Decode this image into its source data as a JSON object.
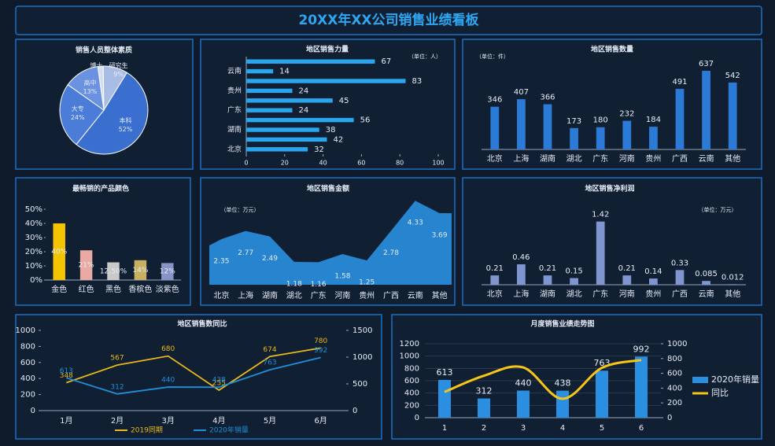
{
  "header": {
    "title": "20XX年XX公司销售业绩看板"
  },
  "chart_data": [
    {
      "type": "pie",
      "title": "销售人员整体素质",
      "categories": [
        "博士",
        "研究生",
        "本科",
        "大专",
        "高中"
      ],
      "values": [
        2,
        9,
        52,
        24,
        13
      ],
      "value_labels": [
        "2%",
        "9%",
        "52%",
        "24%",
        "13%"
      ],
      "colors": [
        "#d4def3",
        "#a9bce6",
        "#3a6fd0",
        "#4b7dd8",
        "#6a92e0"
      ]
    },
    {
      "type": "bar",
      "orientation": "horizontal",
      "title": "地区销售力量",
      "subtitle": "（单位：人）",
      "categories": [
        "北京",
        null,
        "湖南",
        null,
        "广东",
        null,
        "贵州",
        null,
        "云南",
        null
      ],
      "values": [
        32,
        42,
        38,
        56,
        24,
        45,
        24,
        83,
        14,
        67
      ],
      "color": "#2aa6ee",
      "xlim": [
        0,
        100
      ],
      "xticks": [
        0,
        20,
        40,
        60,
        80,
        100
      ]
    },
    {
      "type": "bar",
      "title": "地区销售数量",
      "subtitle": "（单位：件）",
      "categories": [
        "北京",
        "上海",
        "湖南",
        "湖北",
        "广东",
        "河南",
        "贵州",
        "广西",
        "云南",
        "其他"
      ],
      "values": [
        346,
        407,
        366,
        173,
        180,
        232,
        184,
        491,
        637,
        542
      ],
      "color": "#2b7bd6"
    },
    {
      "type": "bar",
      "title": "最畅销的产品颜色",
      "categories": [
        "金色",
        "红色",
        "黑色",
        "香槟色",
        "淡紫色"
      ],
      "values": [
        40,
        21,
        12.5,
        14,
        12
      ],
      "value_labels": [
        "40%",
        "21%",
        "12.50%",
        "14%",
        "12%"
      ],
      "colors": [
        "#f5c400",
        "#e8aaa2",
        "#c9c9c9",
        "#c8b062",
        "#8a93c8"
      ],
      "ylim": [
        0,
        50
      ],
      "yticks": [
        {
          "value": 0,
          "label": "0%"
        },
        {
          "value": 10,
          "label": "10%"
        },
        {
          "value": 20,
          "label": "20%"
        },
        {
          "value": 30,
          "label": "30%"
        },
        {
          "value": 40,
          "label": "40%"
        },
        {
          "value": 50,
          "label": "50%"
        }
      ]
    },
    {
      "type": "area",
      "title": "地区销售金额",
      "subtitle": "（单位：万元）",
      "categories": [
        "北京",
        "上海",
        "湖南",
        "湖北",
        "广东",
        "河南",
        "贵州",
        "广西",
        "云南",
        "其他"
      ],
      "values": [
        2.35,
        2.77,
        2.49,
        1.18,
        1.16,
        1.58,
        1.25,
        2.78,
        4.33,
        3.69
      ],
      "color": "#2a8fe0"
    },
    {
      "type": "bar",
      "title": "地区销售净利润",
      "subtitle": "（单位：万元）",
      "categories": [
        "北京",
        "上海",
        "湖南",
        "湖北",
        "广东",
        "河南",
        "贵州",
        "广西",
        "云南",
        "其他"
      ],
      "values": [
        0.21,
        0.46,
        0.21,
        0.15,
        1.42,
        0.21,
        0.14,
        0.33,
        0.085,
        0.012
      ],
      "color": "#7f95cf"
    },
    {
      "type": "line",
      "title": "地区销售数同比",
      "categories": [
        "1月",
        "2月",
        "3月",
        "4月",
        "5月",
        "6月"
      ],
      "series": [
        {
          "name": "2019同期",
          "color": "#e8b818",
          "values": [
            348,
            567,
            680,
            255,
            674,
            780
          ]
        },
        {
          "name": "2020年销量",
          "color": "#1e90d8",
          "axis": "y2",
          "values": [
            613,
            312,
            440,
            438,
            763,
            992
          ]
        }
      ],
      "ylim": [
        0,
        1000
      ],
      "yticks": [
        0,
        200,
        400,
        600,
        800,
        1000
      ],
      "y2lim": [
        0,
        1500
      ],
      "y2ticks": [
        0,
        500,
        1000,
        1500
      ],
      "legend": "bottom"
    },
    {
      "type": "combo",
      "title": "月度销售业绩走势图",
      "categories": [
        "1",
        "2",
        "3",
        "4",
        "5",
        "6"
      ],
      "series": [
        {
          "name": "2020年销量",
          "type": "bar",
          "color": "#2a8fe0",
          "values": [
            613,
            312,
            440,
            438,
            763,
            992
          ]
        },
        {
          "name": "同比",
          "type": "line",
          "axis": "y2",
          "smooth": true,
          "color": "#f5c518",
          "values": [
            348,
            567,
            680,
            255,
            674,
            780
          ]
        }
      ],
      "ylim": [
        0,
        1200
      ],
      "yticks": [
        0,
        200,
        400,
        600,
        800,
        1000,
        1200
      ],
      "y2lim": [
        0,
        1000
      ],
      "y2ticks": [
        0,
        200,
        400,
        600,
        800,
        1000
      ],
      "grid": true,
      "legend": "right"
    }
  ]
}
